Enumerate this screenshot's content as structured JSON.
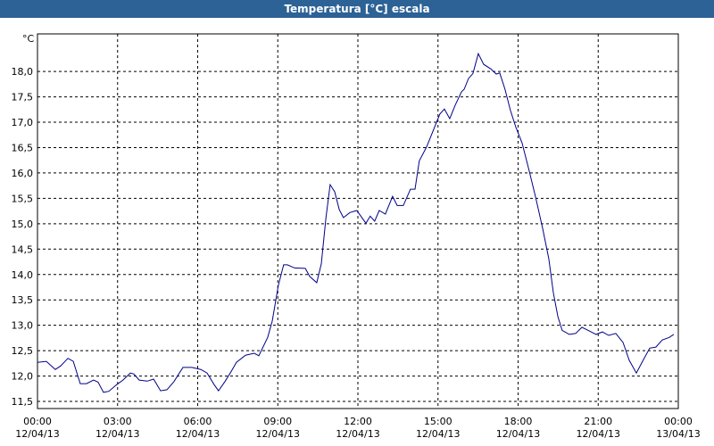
{
  "chart_data": {
    "type": "line",
    "title": "Temperatura [°C] escala",
    "y_unit": "°C",
    "x": [
      0,
      0.33,
      0.67,
      0.87,
      1.14,
      1.34,
      1.6,
      1.84,
      2.1,
      2.27,
      2.47,
      2.67,
      2.94,
      3.2,
      3.48,
      3.61,
      3.81,
      4.11,
      4.35,
      4.61,
      4.85,
      5.11,
      5.45,
      5.78,
      6.12,
      6.35,
      6.62,
      6.78,
      7.02,
      7.22,
      7.45,
      7.79,
      8.12,
      8.29,
      8.62,
      8.79,
      9.02,
      9.22,
      9.36,
      9.63,
      10.03,
      10.2,
      10.46,
      10.63,
      10.8,
      10.96,
      11.13,
      11.3,
      11.46,
      11.7,
      11.96,
      12.3,
      12.46,
      12.63,
      12.8,
      13.03,
      13.3,
      13.47,
      13.7,
      13.97,
      14.14,
      14.3,
      14.57,
      14.8,
      15.07,
      15.24,
      15.44,
      15.64,
      15.88,
      15.98,
      16.14,
      16.31,
      16.51,
      16.71,
      16.98,
      17.18,
      17.31,
      17.51,
      17.71,
      17.91,
      18.15,
      18.42,
      18.65,
      18.92,
      19.15,
      19.32,
      19.49,
      19.65,
      19.92,
      20.16,
      20.39,
      20.66,
      20.92,
      21.16,
      21.39,
      21.66,
      21.93,
      22.16,
      22.43,
      22.66,
      22.93,
      23.16,
      23.4,
      23.66,
      23.83
    ],
    "series": [
      {
        "name": "Temperatura",
        "color": "#00008b",
        "values": [
          12.27,
          12.29,
          12.13,
          12.2,
          12.35,
          12.29,
          11.85,
          11.85,
          11.92,
          11.88,
          11.68,
          11.7,
          11.82,
          11.92,
          12.06,
          12.04,
          11.92,
          11.9,
          11.94,
          11.71,
          11.73,
          11.89,
          12.17,
          12.17,
          12.13,
          12.06,
          11.83,
          11.71,
          11.89,
          12.06,
          12.27,
          12.41,
          12.45,
          12.4,
          12.76,
          13.08,
          13.78,
          14.19,
          14.19,
          14.13,
          14.12,
          13.96,
          13.84,
          14.21,
          15.1,
          15.77,
          15.63,
          15.28,
          15.12,
          15.22,
          15.26,
          15.01,
          15.15,
          15.05,
          15.26,
          15.19,
          15.54,
          15.36,
          15.36,
          15.68,
          15.68,
          16.24,
          16.51,
          16.81,
          17.16,
          17.26,
          17.07,
          17.33,
          17.6,
          17.65,
          17.86,
          17.96,
          18.35,
          18.14,
          18.05,
          17.95,
          17.97,
          17.65,
          17.24,
          16.91,
          16.59,
          16.03,
          15.54,
          14.91,
          14.31,
          13.64,
          13.17,
          12.9,
          12.82,
          12.84,
          12.96,
          12.89,
          12.82,
          12.87,
          12.8,
          12.84,
          12.66,
          12.31,
          12.06,
          12.29,
          12.55,
          12.57,
          12.71,
          12.76,
          12.82
        ]
      }
    ],
    "xlim": [
      0,
      24
    ],
    "ylim": [
      11.36,
      18.74
    ],
    "xticks": [
      {
        "value": 0,
        "label": "00:00\n12/04/13"
      },
      {
        "value": 3,
        "label": "03:00\n12/04/13"
      },
      {
        "value": 6,
        "label": "06:00\n12/04/13"
      },
      {
        "value": 9,
        "label": "09:00\n12/04/13"
      },
      {
        "value": 12,
        "label": "12:00\n12/04/13"
      },
      {
        "value": 15,
        "label": "15:00\n12/04/13"
      },
      {
        "value": 18,
        "label": "18:00\n12/04/13"
      },
      {
        "value": 21,
        "label": "21:00\n12/04/13"
      },
      {
        "value": 24,
        "label": "00:00\n13/04/13"
      }
    ],
    "yticks": [
      {
        "value": 11.5,
        "label": "11,5"
      },
      {
        "value": 12,
        "label": "12,0"
      },
      {
        "value": 12.5,
        "label": "12,5"
      },
      {
        "value": 13,
        "label": "13,0"
      },
      {
        "value": 13.5,
        "label": "13,5"
      },
      {
        "value": 14,
        "label": "14,0"
      },
      {
        "value": 14.5,
        "label": "14,5"
      },
      {
        "value": 15,
        "label": "15,0"
      },
      {
        "value": 15.5,
        "label": "15,5"
      },
      {
        "value": 16,
        "label": "16,0"
      },
      {
        "value": 16.5,
        "label": "16,5"
      },
      {
        "value": 17,
        "label": "17,0"
      },
      {
        "value": 17.5,
        "label": "17,5"
      },
      {
        "value": 18,
        "label": "18,0"
      }
    ],
    "grid": true
  }
}
